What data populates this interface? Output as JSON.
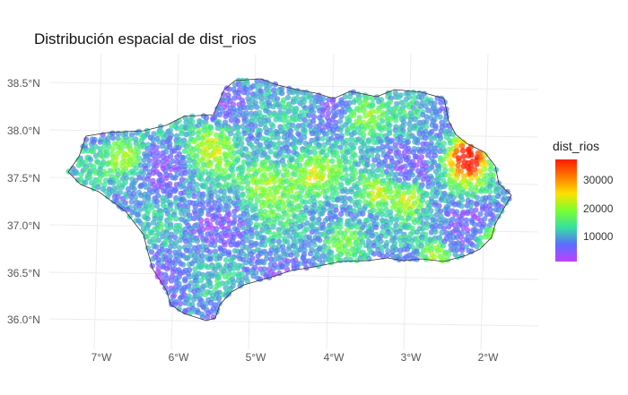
{
  "title": "Distribución espacial de dist_rios",
  "chart_data": {
    "type": "scatter",
    "title": "Distribución espacial de dist_rios",
    "variable": "dist_rios",
    "x_ticks": [
      "7°W",
      "6°W",
      "5°W",
      "4°W",
      "3°W",
      "2°W"
    ],
    "y_ticks": [
      "38.5°N",
      "38.0°N",
      "37.5°N",
      "37.0°N",
      "36.5°N",
      "36.0°N"
    ],
    "xlim": [
      -7.6,
      -1.6
    ],
    "ylim": [
      35.9,
      38.8
    ],
    "legend": {
      "title": "dist_rios",
      "ticks": [
        "30000",
        "20000",
        "10000"
      ],
      "range": [
        0,
        36000
      ],
      "position": "right",
      "colors": [
        "#c040ff",
        "#5a6dff",
        "#35e0a0",
        "#7aff30",
        "#ffe000",
        "#ff7a00",
        "#ff1a00"
      ]
    },
    "grid": true
  }
}
